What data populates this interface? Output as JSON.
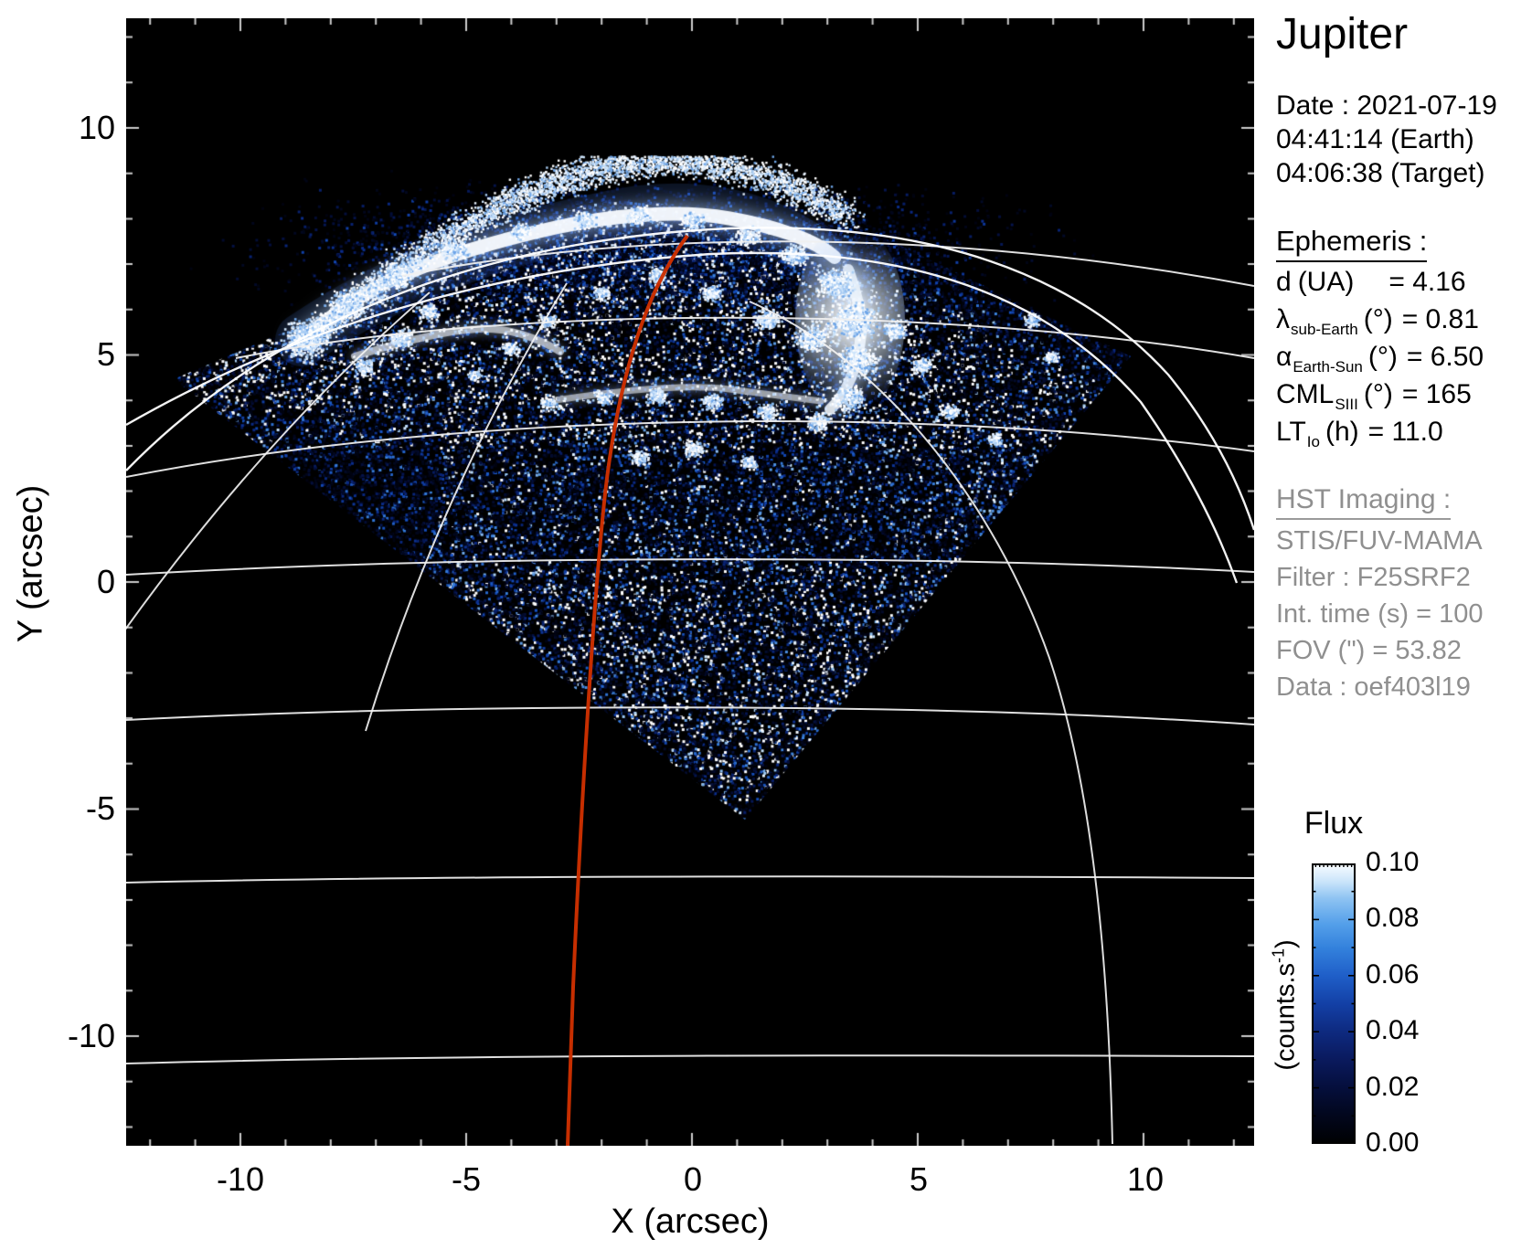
{
  "title": "Jupiter",
  "observation": {
    "line1": "Date : 2021-07-19",
    "line2": "04:41:14 (Earth)",
    "line3": "04:06:38 (Target)"
  },
  "ephemeris": {
    "heading": "Ephemeris :",
    "rows": [
      {
        "sym": "d",
        "sub": "",
        "unit": "(UA)",
        "val": "= 4.16"
      },
      {
        "sym": "λ",
        "sub": "sub-Earth",
        "unit": "(°)",
        "val": "= 0.81"
      },
      {
        "sym": "α",
        "sub": "Earth-Sun",
        "unit": "(°)",
        "val": "= 6.50"
      },
      {
        "sym": "CML",
        "sub": "SIII",
        "unit": "(°)",
        "val": "= 165"
      },
      {
        "sym": "LT",
        "sub": "Io",
        "unit": "(h)",
        "val": "= 11.0"
      }
    ]
  },
  "hst": {
    "heading": "HST Imaging :",
    "lines": [
      "STIS/FUV-MAMA",
      "Filter : F25SRF2",
      "Int. time (s) = 100",
      "FOV (\") = 53.82",
      "Data : oef403l19"
    ]
  },
  "colorbar": {
    "title": "Flux",
    "unit_pre": "(counts.s",
    "unit_sup": "-1",
    "unit_post": ")",
    "ticks": [
      "0.10",
      "0.08",
      "0.06",
      "0.04",
      "0.02",
      "0.00"
    ]
  },
  "x_axis": {
    "label": "X (arcsec)",
    "ticks": [
      "-10",
      "-5",
      "0",
      "5",
      "10"
    ]
  },
  "y_axis": {
    "label": "Y (arcsec)",
    "ticks": [
      "10",
      "5",
      "0",
      "-5",
      "-10"
    ]
  },
  "plot": {
    "background": "#000000",
    "grid_color": "#f0f0f0",
    "footprint_color": "#cc2f00"
  },
  "chart_data": {
    "type": "heatmap",
    "title": "Jupiter",
    "xlabel": "X (arcsec)",
    "ylabel": "Y (arcsec)",
    "xlim": [
      -12.5,
      12.5
    ],
    "ylim": [
      -12.5,
      12.5
    ],
    "x_ticks": [
      -10,
      -5,
      0,
      5,
      10
    ],
    "y_ticks": [
      10,
      5,
      0,
      -5,
      -10
    ],
    "grid": "planetary graticule (latitude arcs, meridian arcs, double limb arc) in white over image",
    "colorbar": {
      "label": "Flux",
      "unit": "counts.s-1",
      "min": 0.0,
      "max": 0.1,
      "tick_values": [
        0.1,
        0.08,
        0.06,
        0.04,
        0.02,
        0.0
      ]
    },
    "content": "HST/STIS far-UV image of Jupiter's northern aurora: diamond-shaped detector footprint filled with blue dayglow noise, bright white main auroral oval near top centered around (0,6) arcsec, red magnetic/Io footprint meridian line running from (0,7.7) at top down to (-2.7,-12.4) at bottom",
    "annotations": [
      "Date : 2021-07-19",
      "04:41:14 (Earth)",
      "04:06:38 (Target)",
      "d (UA) = 4.16",
      "λ sub-Earth (°) = 0.81",
      "α Earth-Sun (°) = 6.50",
      "CML SIII (°) = 165",
      "LT Io (h) = 11.0",
      "STIS/FUV-MAMA",
      "Filter : F25SRF2",
      "Int. time (s) = 100",
      "FOV (\") = 53.82",
      "Data : oef403l19"
    ]
  }
}
